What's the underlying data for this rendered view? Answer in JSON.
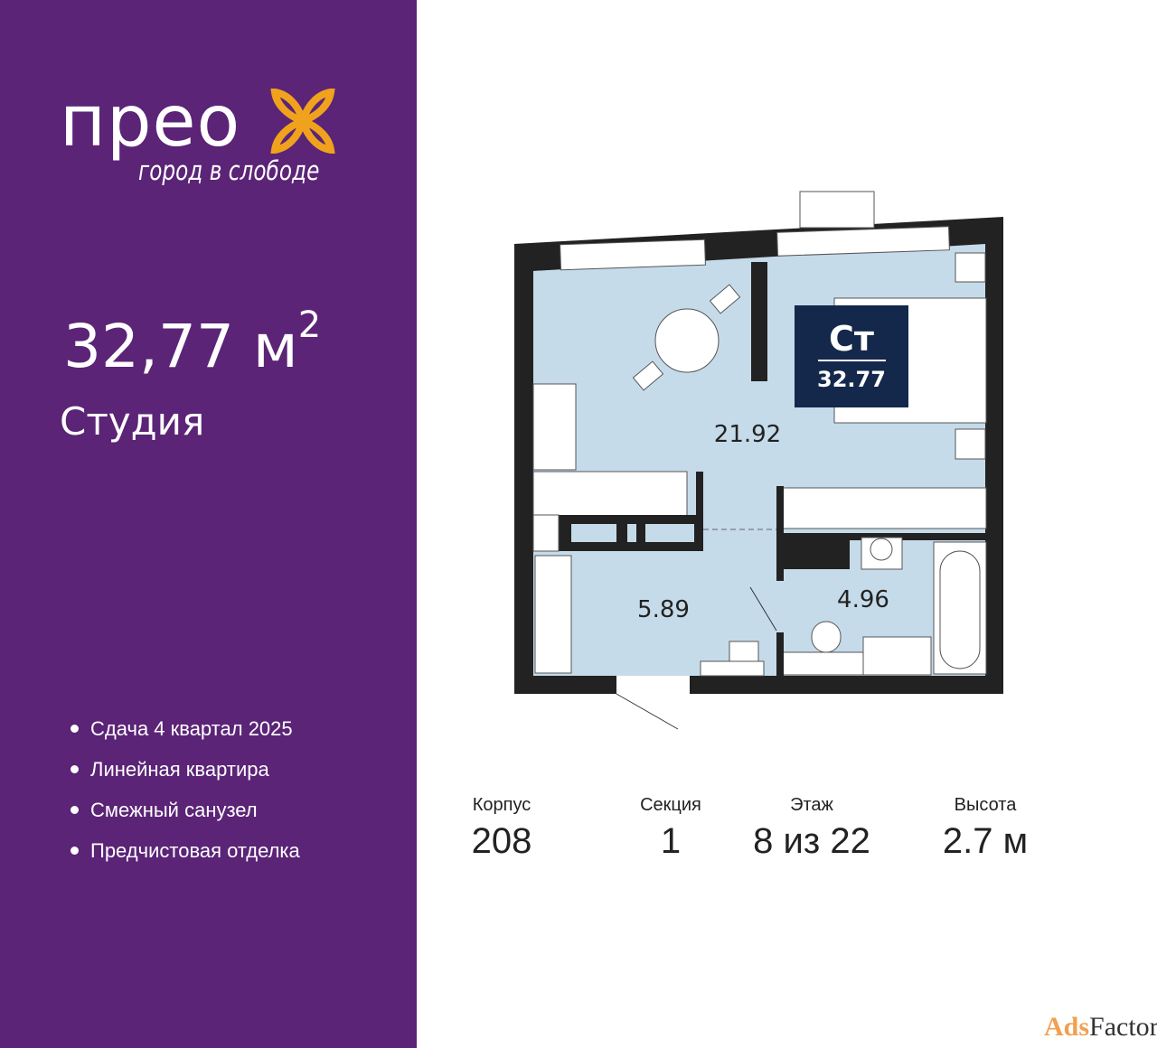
{
  "brand": {
    "name": "прео",
    "tagline": "город в слободе",
    "accent": "#f0a21d",
    "background": "#5b2477"
  },
  "apartment": {
    "area_value": "32,77 м",
    "area_unit_sup": "2",
    "type": "Студия"
  },
  "features": [
    "Сдача 4 квартал 2025",
    "Линейная квартира",
    "Смежный санузел",
    "Предчистовая отделка"
  ],
  "plan": {
    "badge_code": "Ст",
    "badge_area": "32.77",
    "rooms": {
      "living": "21.92",
      "hall": "5.89",
      "bath": "4.96"
    },
    "floor_color": "#c5dbea",
    "wall_color": "#222222",
    "badge_color": "#14284b"
  },
  "stats": [
    {
      "label": "Корпус",
      "value": "208"
    },
    {
      "label": "Секция",
      "value": "1"
    },
    {
      "label": "Этаж",
      "value": "8 из 22"
    },
    {
      "label": "Высота",
      "value": "2.7 м"
    }
  ],
  "watermark": {
    "ads": "Ads",
    "factory": "Factory"
  }
}
